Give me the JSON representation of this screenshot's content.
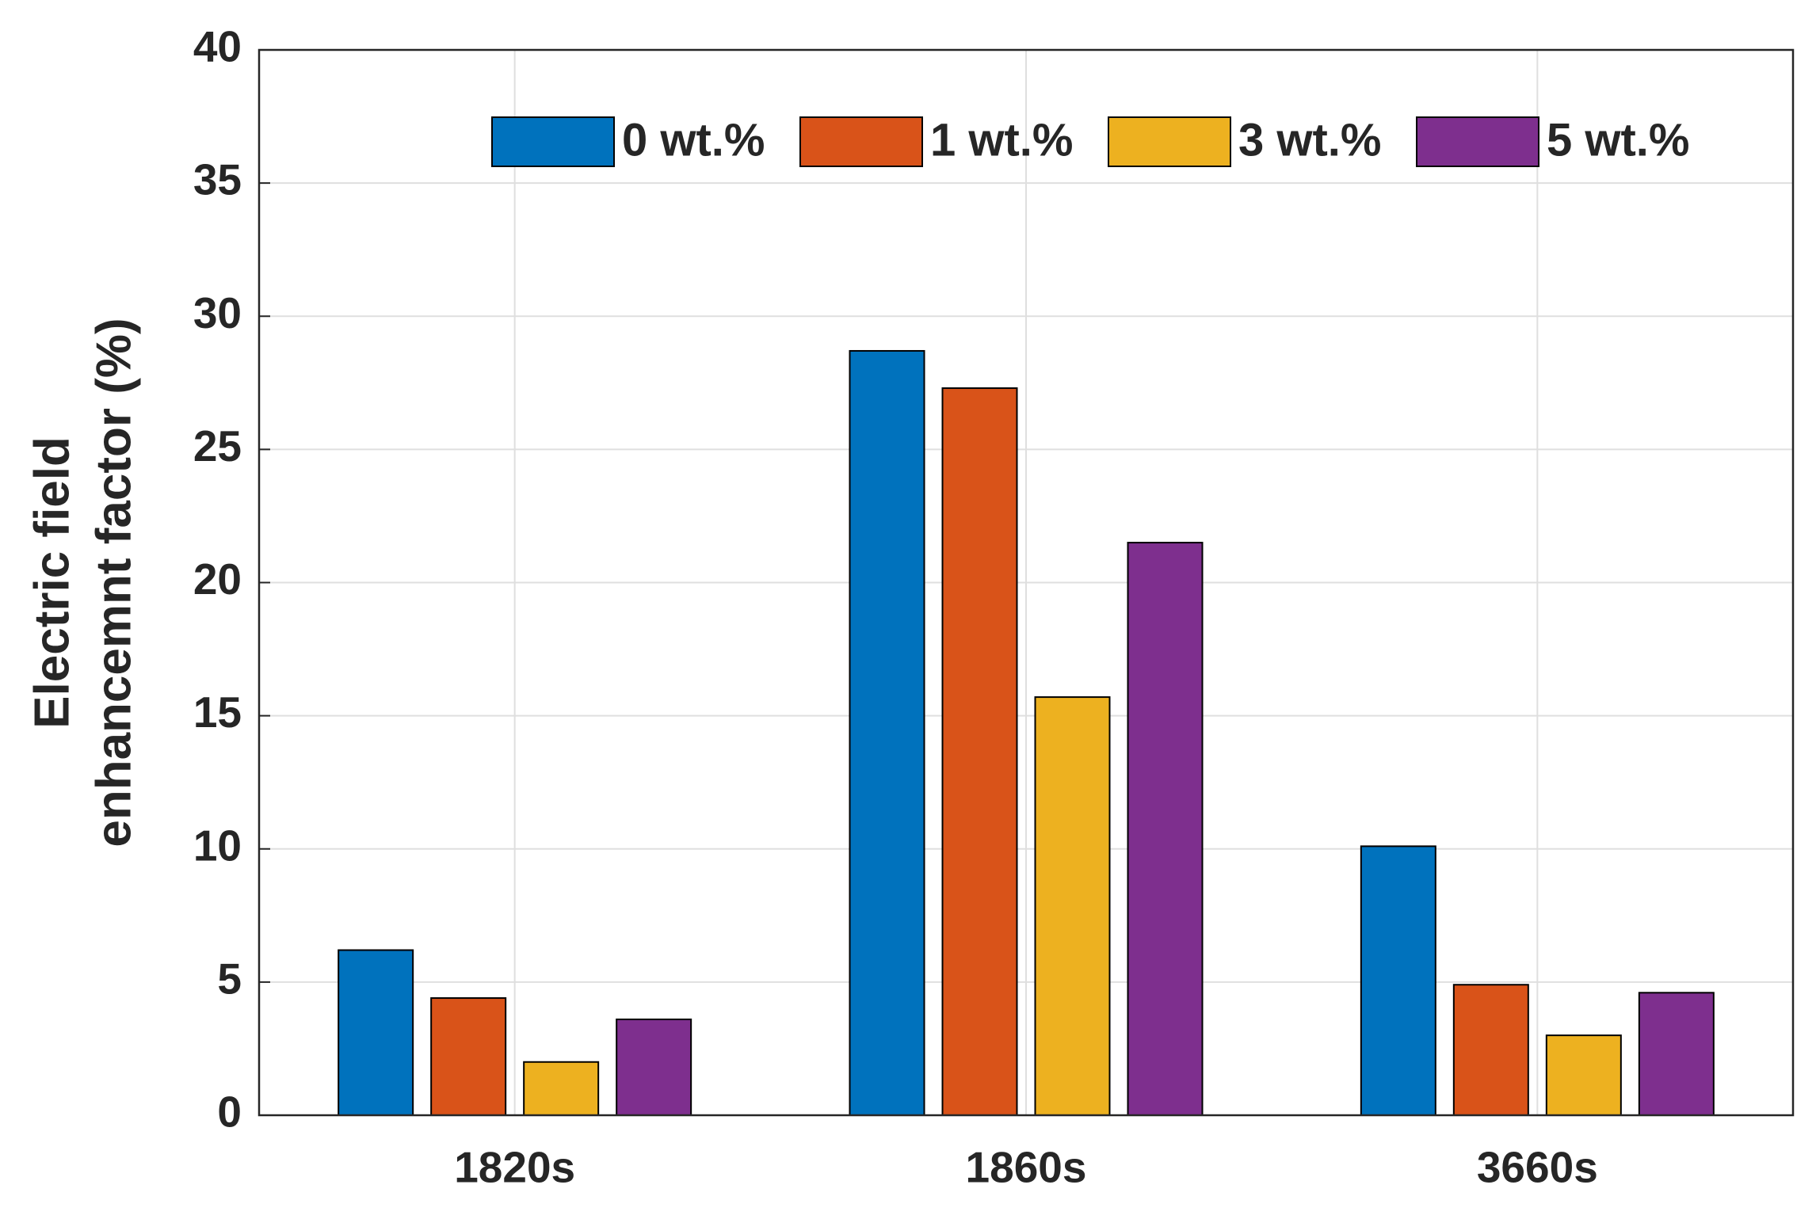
{
  "chart_data": {
    "type": "bar",
    "ylabel": [
      "Electric field",
      "enhancemnt factor (%)"
    ],
    "categories": [
      "1820s",
      "1860s",
      "3660s"
    ],
    "series": [
      {
        "name": "0 wt.%",
        "color": "#0072bd",
        "values": [
          6.2,
          28.7,
          10.1
        ]
      },
      {
        "name": "1 wt.%",
        "color": "#d95319",
        "values": [
          4.4,
          27.3,
          4.9
        ]
      },
      {
        "name": "3 wt.%",
        "color": "#edb120",
        "values": [
          2.0,
          15.7,
          3.0
        ]
      },
      {
        "name": "5 wt.%",
        "color": "#7e2f8e",
        "values": [
          3.6,
          21.5,
          4.6
        ]
      }
    ],
    "ylim": [
      0,
      40
    ],
    "yticks": [
      0,
      5,
      10,
      15,
      20,
      25,
      30,
      35,
      40
    ],
    "grid": true,
    "legend": "top"
  }
}
